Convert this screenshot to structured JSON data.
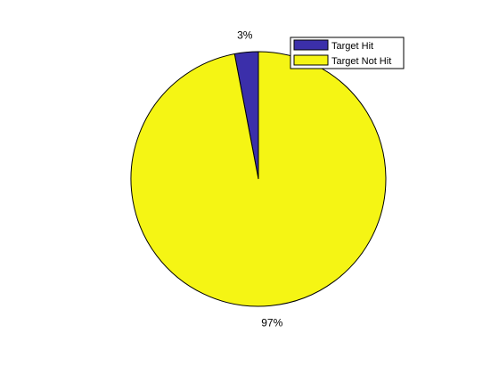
{
  "chart_data": {
    "type": "pie",
    "title": "",
    "legend_placement": "top-right",
    "slices": [
      {
        "name": "Target Hit",
        "value": 3,
        "label": "3%",
        "color": "#3b2faa"
      },
      {
        "name": "Target Not Hit",
        "value": 97,
        "label": "97%",
        "color": "#f5f514"
      }
    ],
    "start_angle_deg": 90,
    "direction": "counterclockwise",
    "edge_color": "#000000"
  }
}
